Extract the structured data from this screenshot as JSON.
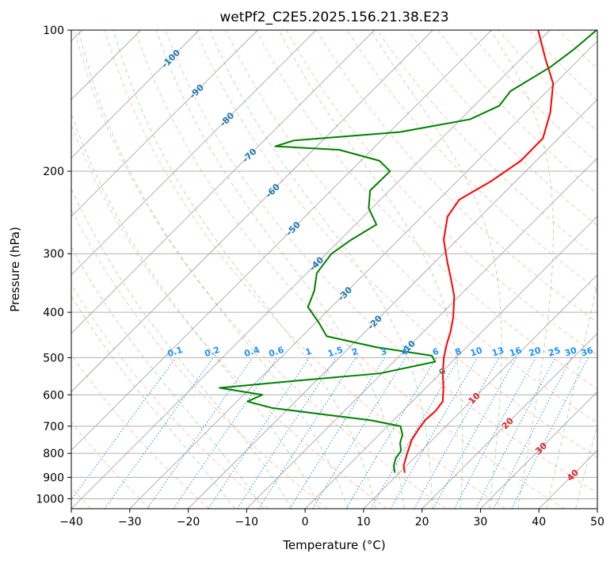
{
  "chart_data": {
    "type": "line",
    "chart_kind": "skew-T log-P diagram",
    "title": "wetPf2_C2E5.2025.156.21.38.E23",
    "xlabel": "Temperature (°C)",
    "ylabel": "Pressure (hPa)",
    "xlim": [
      -40,
      50
    ],
    "ylim": [
      1050,
      100
    ],
    "y_scale": "log",
    "x_ticks": [
      "−40",
      "−30",
      "−20",
      "−10",
      "0",
      "10",
      "20",
      "30",
      "40",
      "50"
    ],
    "x_tick_values": [
      -40,
      -30,
      -20,
      -10,
      0,
      10,
      20,
      30,
      40,
      50
    ],
    "y_ticks": [
      "100",
      "200",
      "300",
      "400",
      "500",
      "600",
      "700",
      "800",
      "900",
      "1000"
    ],
    "y_tick_values": [
      100,
      200,
      300,
      400,
      500,
      600,
      700,
      800,
      900,
      1000
    ],
    "grid": true,
    "series": [
      {
        "role": "temperature",
        "color": "#ff0000",
        "points": [
          {
            "p": 880,
            "t": 10.9
          },
          {
            "p": 850,
            "t": 9.5
          },
          {
            "p": 800,
            "t": 8.0
          },
          {
            "p": 750,
            "t": 6.5
          },
          {
            "p": 710,
            "t": 5.8
          },
          {
            "p": 680,
            "t": 5.4
          },
          {
            "p": 650,
            "t": 5.6
          },
          {
            "p": 620,
            "t": 5.2
          },
          {
            "p": 580,
            "t": 3.0
          },
          {
            "p": 540,
            "t": 0.4
          },
          {
            "p": 500,
            "t": -2.1
          },
          {
            "p": 470,
            "t": -3.8
          },
          {
            "p": 440,
            "t": -5.4
          },
          {
            "p": 410,
            "t": -7.4
          },
          {
            "p": 370,
            "t": -10.8
          },
          {
            "p": 340,
            "t": -14.3
          },
          {
            "p": 310,
            "t": -18.2
          },
          {
            "p": 280,
            "t": -22.3
          },
          {
            "p": 250,
            "t": -25.6
          },
          {
            "p": 230,
            "t": -26.5
          },
          {
            "p": 210,
            "t": -24.2
          },
          {
            "p": 190,
            "t": -22.6
          },
          {
            "p": 170,
            "t": -22.7
          },
          {
            "p": 150,
            "t": -25.8
          },
          {
            "p": 130,
            "t": -30.3
          },
          {
            "p": 115,
            "t": -35.9
          },
          {
            "p": 100,
            "t": -42.0
          }
        ]
      },
      {
        "role": "dewpoint",
        "color": "#008000",
        "points": [
          {
            "p": 880,
            "t": 9.2
          },
          {
            "p": 850,
            "t": 7.8
          },
          {
            "p": 820,
            "t": 6.9
          },
          {
            "p": 790,
            "t": 6.5
          },
          {
            "p": 760,
            "t": 5.0
          },
          {
            "p": 730,
            "t": 4.0
          },
          {
            "p": 700,
            "t": 2.2
          },
          {
            "p": 680,
            "t": -3.9
          },
          {
            "p": 660,
            "t": -13.3
          },
          {
            "p": 640,
            "t": -22.9
          },
          {
            "p": 620,
            "t": -28.2
          },
          {
            "p": 600,
            "t": -26.8
          },
          {
            "p": 580,
            "t": -35.3
          },
          {
            "p": 560,
            "t": -23.4
          },
          {
            "p": 540,
            "t": -10.3
          },
          {
            "p": 510,
            "t": -2.9
          },
          {
            "p": 495,
            "t": -4.5
          },
          {
            "p": 475,
            "t": -15.4
          },
          {
            "p": 450,
            "t": -25.8
          },
          {
            "p": 420,
            "t": -29.6
          },
          {
            "p": 390,
            "t": -34.0
          },
          {
            "p": 360,
            "t": -35.7
          },
          {
            "p": 330,
            "t": -38.3
          },
          {
            "p": 300,
            "t": -39.1
          },
          {
            "p": 280,
            "t": -38.1
          },
          {
            "p": 260,
            "t": -36.4
          },
          {
            "p": 240,
            "t": -40.5
          },
          {
            "p": 220,
            "t": -43.3
          },
          {
            "p": 200,
            "t": -43.2
          },
          {
            "p": 190,
            "t": -46.8
          },
          {
            "p": 180,
            "t": -55.6
          },
          {
            "p": 177,
            "t": -67.1
          },
          {
            "p": 172,
            "t": -64.9
          },
          {
            "p": 165,
            "t": -48.2
          },
          {
            "p": 155,
            "t": -38.4
          },
          {
            "p": 145,
            "t": -35.7
          },
          {
            "p": 135,
            "t": -36.3
          },
          {
            "p": 120,
            "t": -33.6
          },
          {
            "p": 110,
            "t": -32.6
          },
          {
            "p": 100,
            "t": -32.0
          }
        ]
      }
    ],
    "dry_adiabats": {
      "color": "#ff7f50",
      "theta_c": [
        -40,
        -30,
        -20,
        -10,
        0,
        10,
        20,
        30,
        40,
        50,
        60,
        70,
        80,
        90,
        100,
        110,
        120,
        130,
        140,
        150,
        160,
        170,
        180,
        190
      ]
    },
    "moist_adiabats": {
      "color": "#2ca02c",
      "temps_at_1000hPa_c": [
        -15,
        -10,
        -5,
        0,
        5,
        10,
        15,
        20,
        25,
        30,
        35,
        40,
        45
      ]
    },
    "mixing_ratio_lines": {
      "color": "#1e90ff",
      "label_pressure_hpa": 500,
      "values_gkg": [
        0.1,
        0.2,
        0.4,
        0.6,
        1,
        1.5,
        2,
        3,
        4,
        6,
        8,
        10,
        13,
        16,
        20,
        25,
        30,
        36
      ],
      "labels": [
        "0.1",
        "0.2",
        "0.4",
        "0.6",
        "1",
        "1.5",
        "2",
        "3",
        "4",
        "6",
        "8",
        "10",
        "13",
        "16",
        "20",
        "25",
        "30",
        "36"
      ]
    },
    "isotherm_labels_blue": {
      "color": "#1f77b4",
      "items": [
        {
          "text": "-100",
          "t": -100
        },
        {
          "text": "-90",
          "t": -90
        },
        {
          "text": "-80",
          "t": -80
        },
        {
          "text": "-70",
          "t": -70
        },
        {
          "text": "-60",
          "t": -60
        },
        {
          "text": "-50",
          "t": -50
        },
        {
          "text": "-40",
          "t": -40
        },
        {
          "text": "-30",
          "t": -30
        },
        {
          "text": "-20",
          "t": -20
        },
        {
          "text": "-10",
          "t": -10
        }
      ]
    },
    "isotherm_labels_grey": [
      {
        "text": "0",
        "t": 0
      }
    ],
    "isotherm_labels_red": {
      "color": "#d62728",
      "items": [
        {
          "text": "10",
          "t": 10
        },
        {
          "text": "20",
          "t": 20
        },
        {
          "text": "30",
          "t": 30
        },
        {
          "text": "40",
          "t": 40
        }
      ]
    },
    "isotherm_step_c": 10
  }
}
